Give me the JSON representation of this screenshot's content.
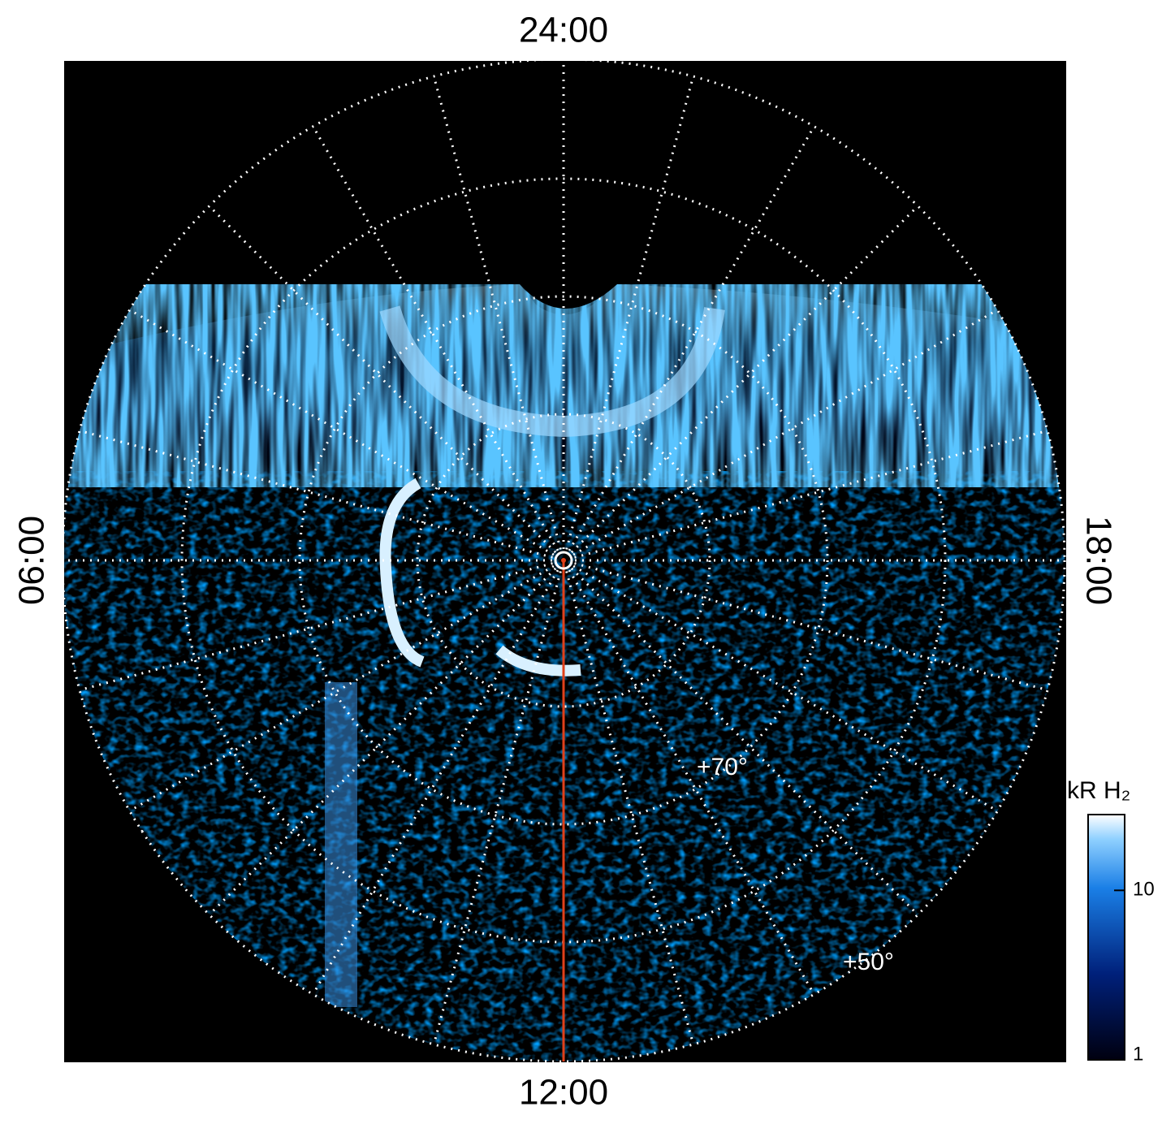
{
  "local_time_labels": {
    "top": "24:00",
    "left": "06:00",
    "right": "18:00",
    "bottom": "12:00"
  },
  "latitude_labels": [
    "+70°",
    "+50°"
  ],
  "colorbar": {
    "title": "kR H₂",
    "scale": "log",
    "lim": [
      1,
      28
    ],
    "ticks": [
      1,
      10
    ]
  }
}
